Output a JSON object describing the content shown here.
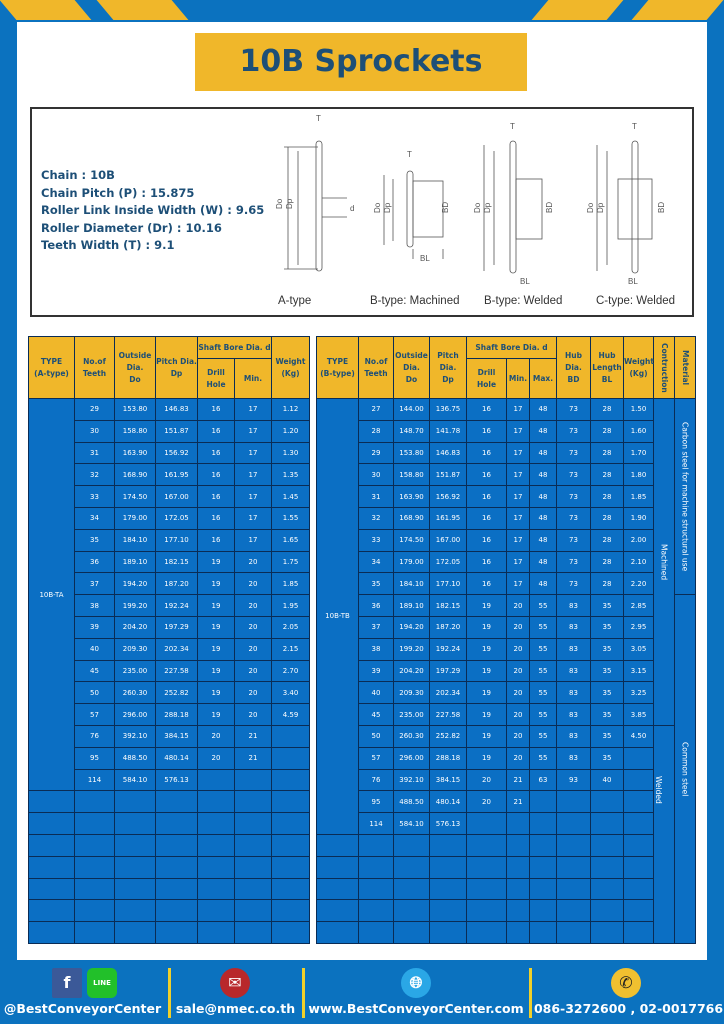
{
  "title": "10B Sprockets",
  "specs": [
    "Chain  :  10B",
    "Chain Pitch (P)  :  15.875",
    "Roller Link Inside Width (W) : 9.65",
    "Roller Diameter (Dr)  : 10.16",
    "Teeth Width (T)  :  9.1"
  ],
  "diagram": {
    "captions": [
      "A-type",
      "B-type: Machined",
      "B-type: Welded",
      "C-type: Welded"
    ],
    "labels": {
      "t": "T",
      "do": "Do",
      "dp": "Dp",
      "d": "d",
      "bd": "BD",
      "bl": "BL"
    }
  },
  "colors": {
    "frame": "#0b72bf",
    "accent": "#f0b72a",
    "cell": "#0b6fc4",
    "title_text": "#1d4f77"
  },
  "table_a": {
    "headers": {
      "type": "TYPE\n(A-type)",
      "teeth": "No.of\nTeeth",
      "do": "Outside\nDia.\nDo",
      "dp": "Pitch Dia.\nDp",
      "bore": "Shaft Bore Dia. d",
      "drill": "Drill Hole",
      "min": "Min.",
      "weight": "Weight\n(Kg)"
    },
    "type_label": "10B-TA",
    "rows": [
      [
        "29",
        "153.80",
        "146.83",
        "16",
        "17",
        "1.12"
      ],
      [
        "30",
        "158.80",
        "151.87",
        "16",
        "17",
        "1.20"
      ],
      [
        "31",
        "163.90",
        "156.92",
        "16",
        "17",
        "1.30"
      ],
      [
        "32",
        "168.90",
        "161.95",
        "16",
        "17",
        "1.35"
      ],
      [
        "33",
        "174.50",
        "167.00",
        "16",
        "17",
        "1.45"
      ],
      [
        "34",
        "179.00",
        "172.05",
        "16",
        "17",
        "1.55"
      ],
      [
        "35",
        "184.10",
        "177.10",
        "16",
        "17",
        "1.65"
      ],
      [
        "36",
        "189.10",
        "182.15",
        "19",
        "20",
        "1.75"
      ],
      [
        "37",
        "194.20",
        "187.20",
        "19",
        "20",
        "1.85"
      ],
      [
        "38",
        "199.20",
        "192.24",
        "19",
        "20",
        "1.95"
      ],
      [
        "39",
        "204.20",
        "197.29",
        "19",
        "20",
        "2.05"
      ],
      [
        "40",
        "209.30",
        "202.34",
        "19",
        "20",
        "2.15"
      ],
      [
        "45",
        "235.00",
        "227.58",
        "19",
        "20",
        "2.70"
      ],
      [
        "50",
        "260.30",
        "252.82",
        "19",
        "20",
        "3.40"
      ],
      [
        "57",
        "296.00",
        "288.18",
        "19",
        "20",
        "4.59"
      ],
      [
        "76",
        "392.10",
        "384.15",
        "20",
        "21",
        ""
      ],
      [
        "95",
        "488.50",
        "480.14",
        "20",
        "21",
        ""
      ],
      [
        "114",
        "584.10",
        "576.13",
        "",
        "",
        ""
      ]
    ]
  },
  "table_b": {
    "headers": {
      "type": "TYPE\n(B-type)",
      "teeth": "No.of\nTeeth",
      "do": "Outside\nDia.\nDo",
      "dp": "Pitch Dia.\nDp",
      "bore": "Shaft Bore Dia. d",
      "drill": "Drill Hole",
      "min": "Min.",
      "max": "Max.",
      "bd": "Hub Dia.\nBD",
      "bl": "Hub\nLength\nBL",
      "weight": "Weight\n(Kg)",
      "construction": "Contruction",
      "material": "Material"
    },
    "type_label": "10B-TB",
    "construction": [
      "Machined",
      "Welded"
    ],
    "material": [
      "Carbon steel for machine structural use",
      "Common steel"
    ],
    "rows": [
      [
        "27",
        "144.00",
        "136.75",
        "16",
        "17",
        "48",
        "73",
        "28",
        "1.50"
      ],
      [
        "28",
        "148.70",
        "141.78",
        "16",
        "17",
        "48",
        "73",
        "28",
        "1.60"
      ],
      [
        "29",
        "153.80",
        "146.83",
        "16",
        "17",
        "48",
        "73",
        "28",
        "1.70"
      ],
      [
        "30",
        "158.80",
        "151.87",
        "16",
        "17",
        "48",
        "73",
        "28",
        "1.80"
      ],
      [
        "31",
        "163.90",
        "156.92",
        "16",
        "17",
        "48",
        "73",
        "28",
        "1.85"
      ],
      [
        "32",
        "168.90",
        "161.95",
        "16",
        "17",
        "48",
        "73",
        "28",
        "1.90"
      ],
      [
        "33",
        "174.50",
        "167.00",
        "16",
        "17",
        "48",
        "73",
        "28",
        "2.00"
      ],
      [
        "34",
        "179.00",
        "172.05",
        "16",
        "17",
        "48",
        "73",
        "28",
        "2.10"
      ],
      [
        "35",
        "184.10",
        "177.10",
        "16",
        "17",
        "48",
        "73",
        "28",
        "2.20"
      ],
      [
        "36",
        "189.10",
        "182.15",
        "19",
        "20",
        "55",
        "83",
        "35",
        "2.85"
      ],
      [
        "37",
        "194.20",
        "187.20",
        "19",
        "20",
        "55",
        "83",
        "35",
        "2.95"
      ],
      [
        "38",
        "199.20",
        "192.24",
        "19",
        "20",
        "55",
        "83",
        "35",
        "3.05"
      ],
      [
        "39",
        "204.20",
        "197.29",
        "19",
        "20",
        "55",
        "83",
        "35",
        "3.15"
      ],
      [
        "40",
        "209.30",
        "202.34",
        "19",
        "20",
        "55",
        "83",
        "35",
        "3.25"
      ],
      [
        "45",
        "235.00",
        "227.58",
        "19",
        "20",
        "55",
        "83",
        "35",
        "3.85"
      ],
      [
        "50",
        "260.30",
        "252.82",
        "19",
        "20",
        "55",
        "83",
        "35",
        "4.50"
      ],
      [
        "57",
        "296.00",
        "288.18",
        "19",
        "20",
        "55",
        "83",
        "35",
        ""
      ],
      [
        "76",
        "392.10",
        "384.15",
        "20",
        "21",
        "63",
        "93",
        "40",
        ""
      ],
      [
        "95",
        "488.50",
        "480.14",
        "20",
        "21",
        "",
        "",
        "",
        ""
      ],
      [
        "114",
        "584.10",
        "576.13",
        "",
        "",
        "",
        "",
        "",
        ""
      ]
    ]
  },
  "footer": {
    "social": "@BestConveyorCenter",
    "line_badge": "LINE",
    "email": "sale@nmec.co.th",
    "website": "www.BestConveyorCenter.com",
    "phone": "086-3272600 , 02-0017766"
  }
}
